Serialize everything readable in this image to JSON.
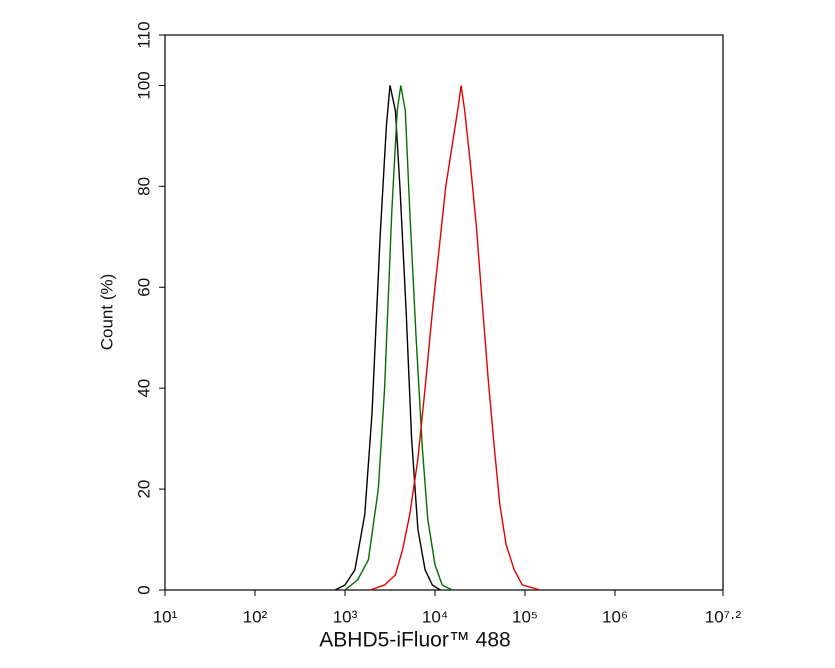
{
  "chart_data": {
    "type": "line",
    "x_label": "ABHD5-iFluor™ 488",
    "y_label": "Count  (%)",
    "xlim": [
      1,
      7.2
    ],
    "xticks": [
      {
        "value": 1,
        "label": "10¹"
      },
      {
        "value": 2,
        "label": "10²"
      },
      {
        "value": 3,
        "label": "10³"
      },
      {
        "value": 4,
        "label": "10⁴"
      },
      {
        "value": 5,
        "label": "10⁵"
      },
      {
        "value": 6,
        "label": "10⁶"
      },
      {
        "value": 7.2,
        "label": "10⁷·²"
      }
    ],
    "ylim": [
      0,
      110
    ],
    "yticks": [
      0,
      20,
      40,
      60,
      80,
      100,
      110
    ],
    "series": [
      {
        "color": "#000000",
        "x": [
          2.89,
          3.0,
          3.11,
          3.22,
          3.3,
          3.39,
          3.46,
          3.5,
          3.56,
          3.61,
          3.68,
          3.74,
          3.81,
          3.89,
          3.97,
          4.06
        ],
        "values": [
          0,
          1,
          4,
          15,
          35,
          70,
          92,
          100,
          95,
          80,
          55,
          30,
          12,
          4,
          1,
          0
        ]
      },
      {
        "color": "#007000",
        "x": [
          3.0,
          3.14,
          3.26,
          3.37,
          3.44,
          3.52,
          3.58,
          3.62,
          3.67,
          3.72,
          3.79,
          3.86,
          3.92,
          4.0,
          4.08,
          4.19
        ],
        "values": [
          0,
          2,
          6,
          20,
          40,
          75,
          95,
          100,
          95,
          75,
          50,
          28,
          14,
          5,
          1,
          0
        ]
      },
      {
        "color": "#e00000",
        "x": [
          3.28,
          3.44,
          3.56,
          3.64,
          3.72,
          3.81,
          3.89,
          3.97,
          4.06,
          4.12,
          4.19,
          4.26,
          4.29,
          4.33,
          4.39,
          4.46,
          4.52,
          4.59,
          4.66,
          4.72,
          4.79,
          4.88,
          4.97,
          5.17
        ],
        "values": [
          0,
          1,
          3,
          8,
          15,
          26,
          40,
          55,
          70,
          80,
          88,
          96,
          100,
          95,
          85,
          72,
          58,
          42,
          28,
          17,
          9,
          4,
          1,
          0
        ]
      }
    ]
  }
}
